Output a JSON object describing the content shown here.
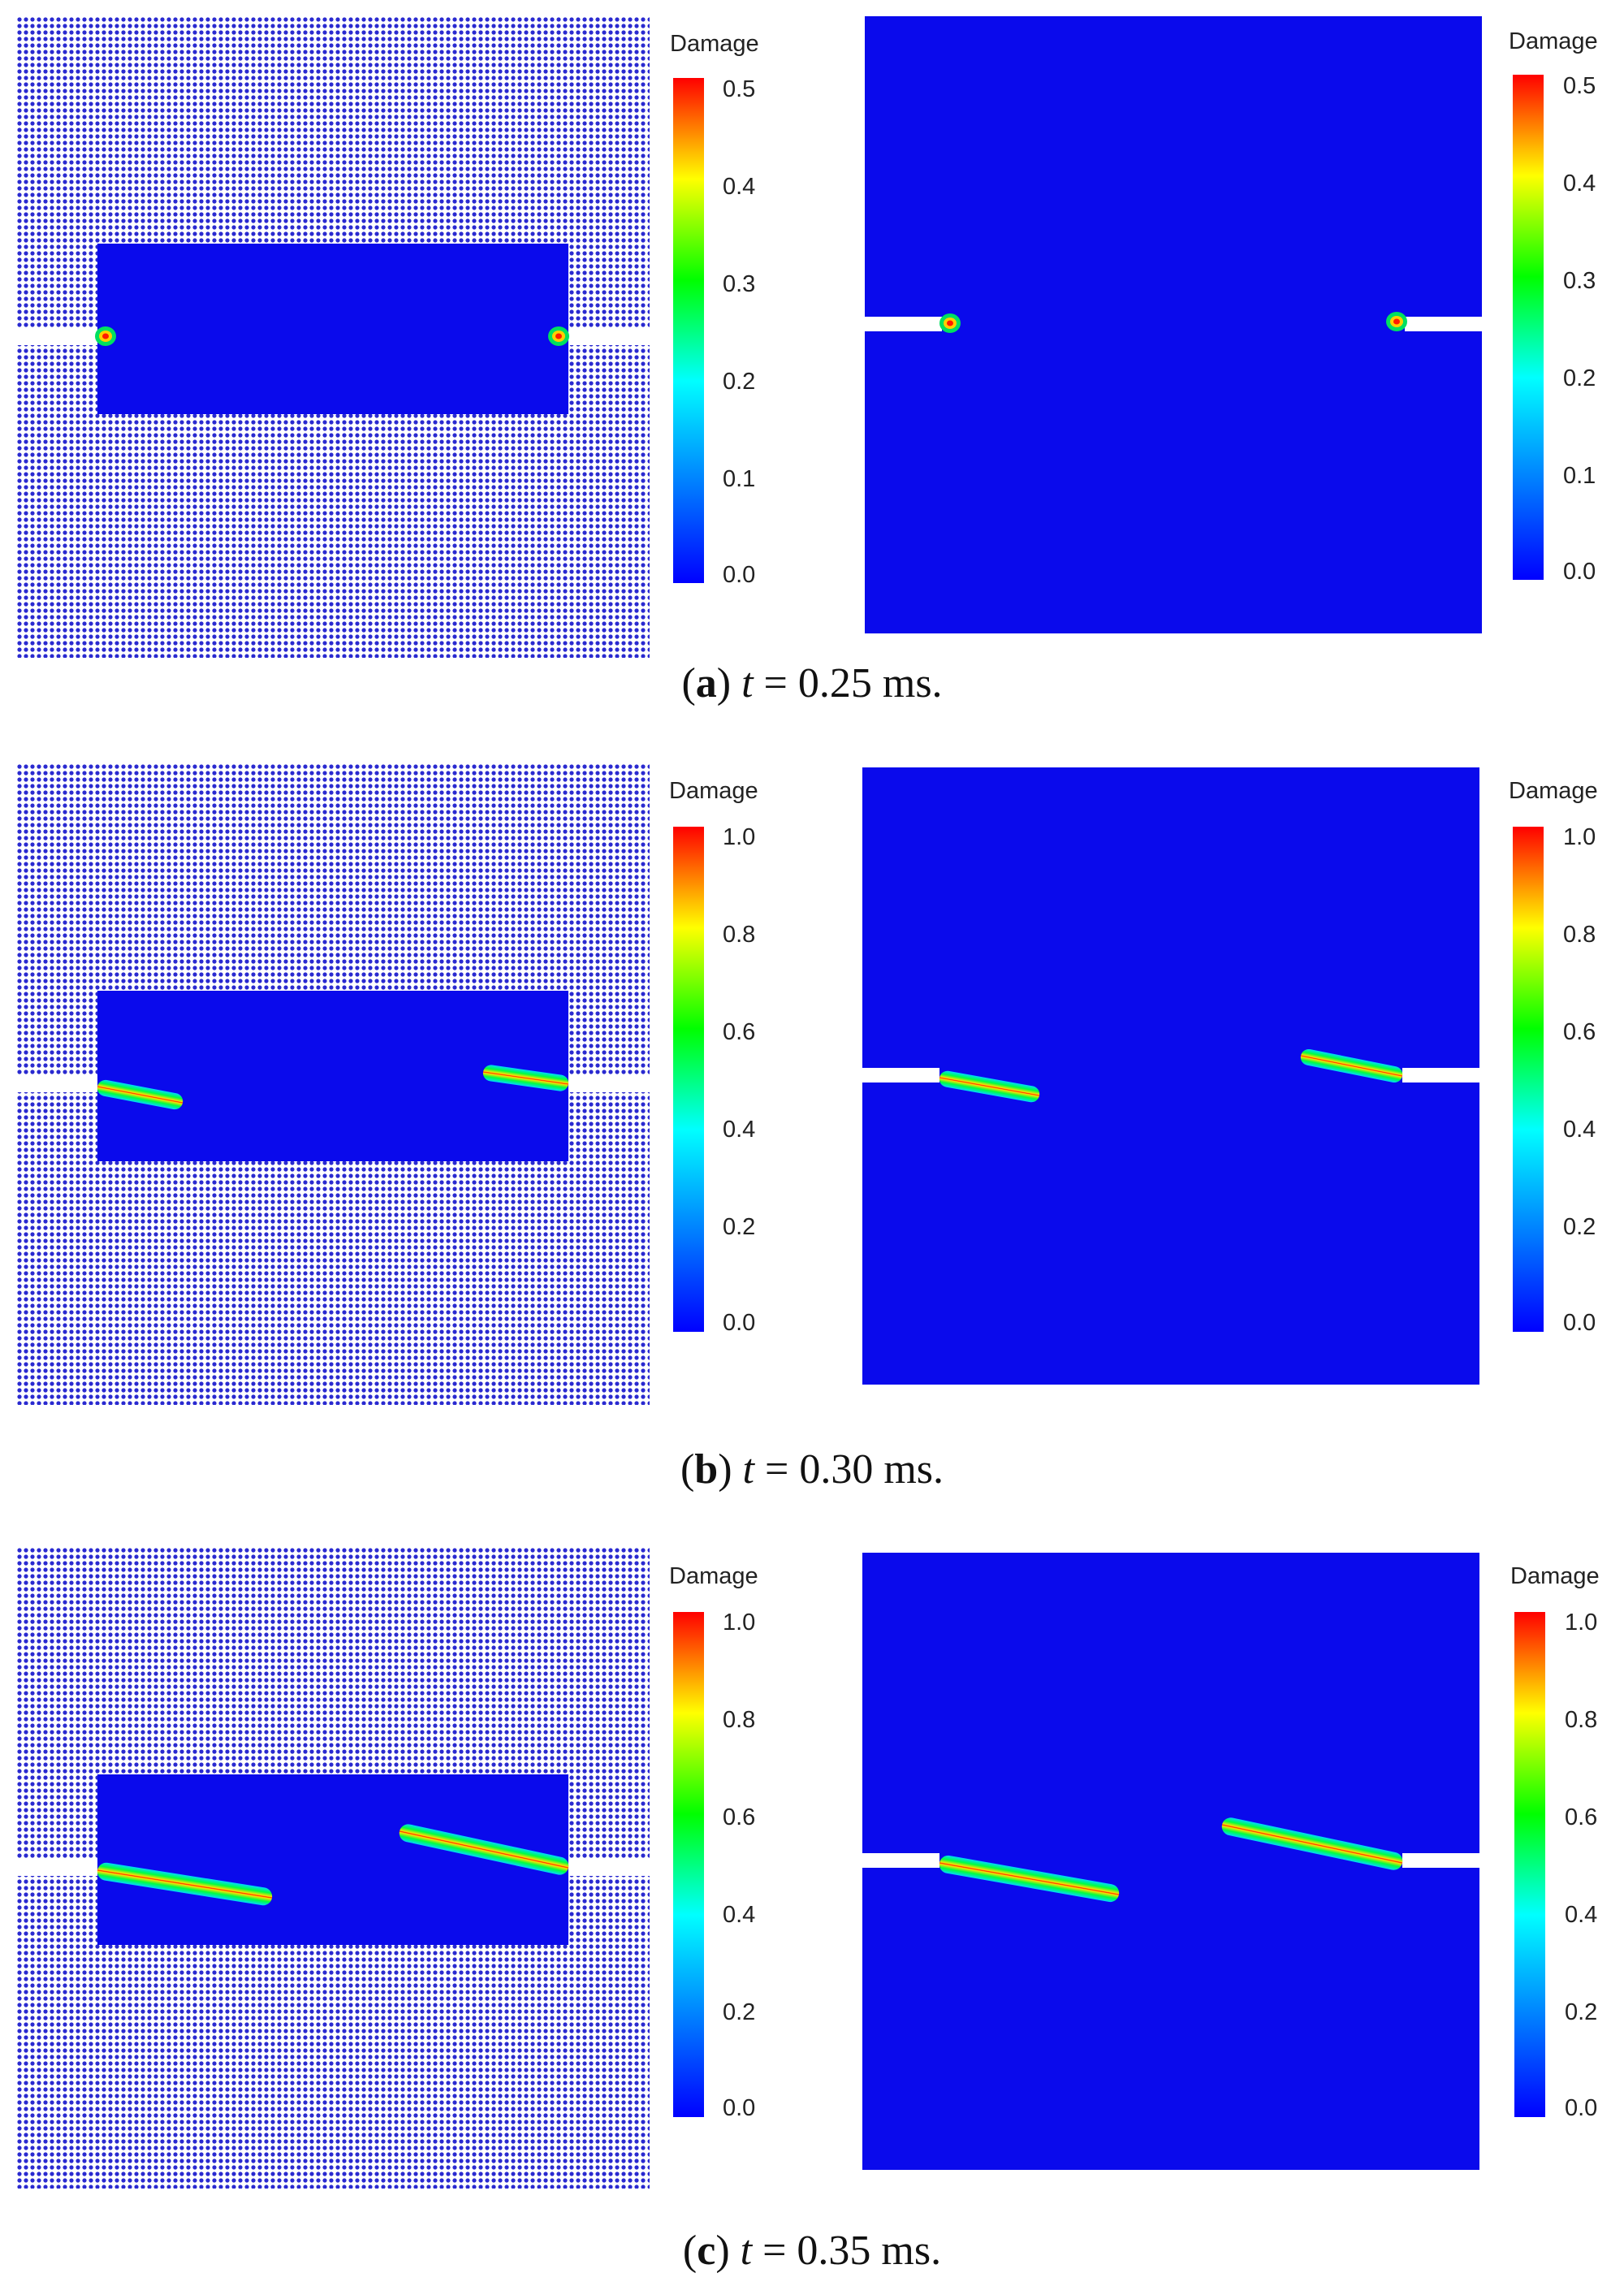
{
  "colorbar": {
    "title": "Damage",
    "gradient": [
      "#0000ff",
      "#0080ff",
      "#00ffff",
      "#00ff00",
      "#ffff00",
      "#ff0000"
    ]
  },
  "rows": [
    {
      "caption": {
        "label": "a",
        "time_var": "t",
        "equals": "=",
        "value": "0.25 ms."
      },
      "ticks": [
        "0.5",
        "0.4",
        "0.3",
        "0.2",
        "0.1",
        "0.0"
      ],
      "damage_max": 0.5
    },
    {
      "caption": {
        "label": "b",
        "time_var": "t",
        "equals": "=",
        "value": "0.30 ms."
      },
      "ticks": [
        "1.0",
        "0.8",
        "0.6",
        "0.4",
        "0.2",
        "0.0"
      ],
      "damage_max": 1.0
    },
    {
      "caption": {
        "label": "c",
        "time_var": "t",
        "equals": "=",
        "value": "0.35 ms."
      },
      "ticks": [
        "1.0",
        "0.8",
        "0.6",
        "0.4",
        "0.2",
        "0.0"
      ],
      "damage_max": 1.0
    }
  ],
  "colors": {
    "particle": "#2a2ad0",
    "field": "#0a0aec",
    "notch": "#ffffff"
  }
}
